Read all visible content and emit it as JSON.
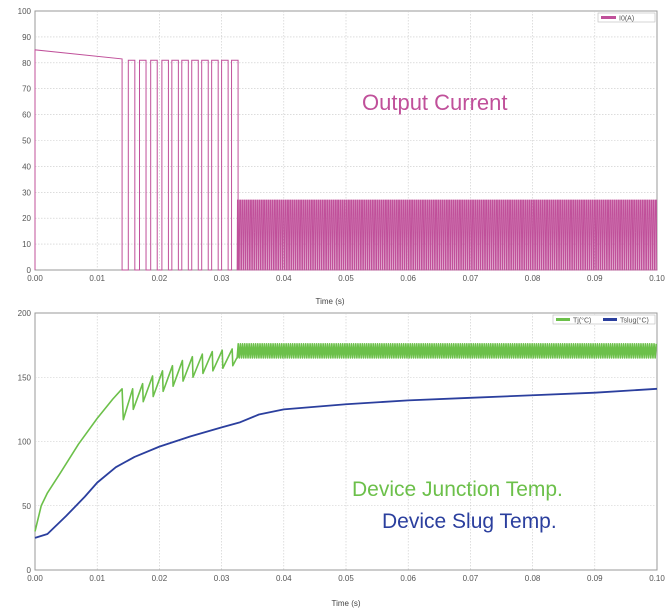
{
  "chart_data": [
    {
      "type": "line",
      "title": "",
      "xlabel": "Time (s)",
      "ylabel": "",
      "xlim": [
        0,
        0.1
      ],
      "ylim": [
        0,
        100
      ],
      "xticks": [
        "0.00",
        "0.01",
        "0.02",
        "0.03",
        "0.04",
        "0.05",
        "0.06",
        "0.07",
        "0.08",
        "0.09",
        "0.10"
      ],
      "yticks": [
        "0",
        "10",
        "20",
        "30",
        "40",
        "50",
        "60",
        "70",
        "80",
        "90",
        "100"
      ],
      "grid": true,
      "legend_position": "top-right",
      "annotation": "Output Current",
      "series": [
        {
          "name": "I0(A)",
          "color": "#c0509a",
          "initial_peak": 85,
          "decay_points": [
            [
              0.0,
              85
            ],
            [
              0.014,
              81.5
            ]
          ],
          "pulse_on_times": [
            0.015,
            0.0168,
            0.0186,
            0.0204,
            0.022,
            0.0236,
            0.0252,
            0.0268,
            0.0284,
            0.03,
            0.0316
          ],
          "pulse_width": 0.00105,
          "pulse_level": 81,
          "first_drop_time": 0.014,
          "steady_start": 0.0325,
          "steady_end": 0.1,
          "steady_level": 27,
          "steady_period": 0.00035
        }
      ]
    },
    {
      "type": "line",
      "title": "",
      "xlabel": "Time (s)",
      "ylabel": "",
      "xlim": [
        0,
        0.1
      ],
      "ylim": [
        0,
        200
      ],
      "xticks": [
        "0.00",
        "0.01",
        "0.02",
        "0.03",
        "0.04",
        "0.05",
        "0.06",
        "0.07",
        "0.08",
        "0.09",
        "0.10"
      ],
      "yticks": [
        "0",
        "50",
        "100",
        "150",
        "200"
      ],
      "grid": true,
      "legend_position": "top-right",
      "annotations": [
        "Device Junction Temp.",
        "Device Slug Temp."
      ],
      "series": [
        {
          "name": "Tj(°C)",
          "color": "#6cc04a",
          "rise_points": [
            [
              0.0,
              30
            ],
            [
              0.001,
              50
            ],
            [
              0.002,
              60
            ],
            [
              0.004,
              75
            ],
            [
              0.007,
              98
            ],
            [
              0.01,
              118
            ],
            [
              0.0125,
              133
            ],
            [
              0.014,
              141
            ]
          ],
          "sawtooth": [
            [
              0.0142,
              141,
              117
            ],
            [
              0.0158,
              145,
              125
            ],
            [
              0.0174,
              151,
              131
            ],
            [
              0.019,
              155,
              135
            ],
            [
              0.0206,
              159,
              139
            ],
            [
              0.0222,
              163,
              143
            ],
            [
              0.0238,
              166,
              147
            ],
            [
              0.0254,
              168,
              150
            ],
            [
              0.027,
              170,
              153
            ],
            [
              0.0286,
              171,
              155
            ],
            [
              0.0302,
              172,
              157
            ],
            [
              0.0318,
              173,
              159
            ]
          ],
          "steady_start": 0.0325,
          "steady_end": 0.1,
          "steady_low": 165,
          "steady_high": 176,
          "steady_period": 0.00035
        },
        {
          "name": "Tslug(°C)",
          "color": "#2b3f9e",
          "points": [
            [
              0.0,
              25
            ],
            [
              0.002,
              28
            ],
            [
              0.005,
              42
            ],
            [
              0.008,
              57
            ],
            [
              0.01,
              68
            ],
            [
              0.013,
              80
            ],
            [
              0.016,
              88
            ],
            [
              0.02,
              96
            ],
            [
              0.025,
              104
            ],
            [
              0.03,
              111
            ],
            [
              0.033,
              115
            ],
            [
              0.036,
              121
            ],
            [
              0.04,
              125
            ],
            [
              0.05,
              129
            ],
            [
              0.06,
              132
            ],
            [
              0.07,
              134
            ],
            [
              0.08,
              136
            ],
            [
              0.09,
              138
            ],
            [
              0.1,
              141
            ]
          ]
        }
      ]
    }
  ]
}
